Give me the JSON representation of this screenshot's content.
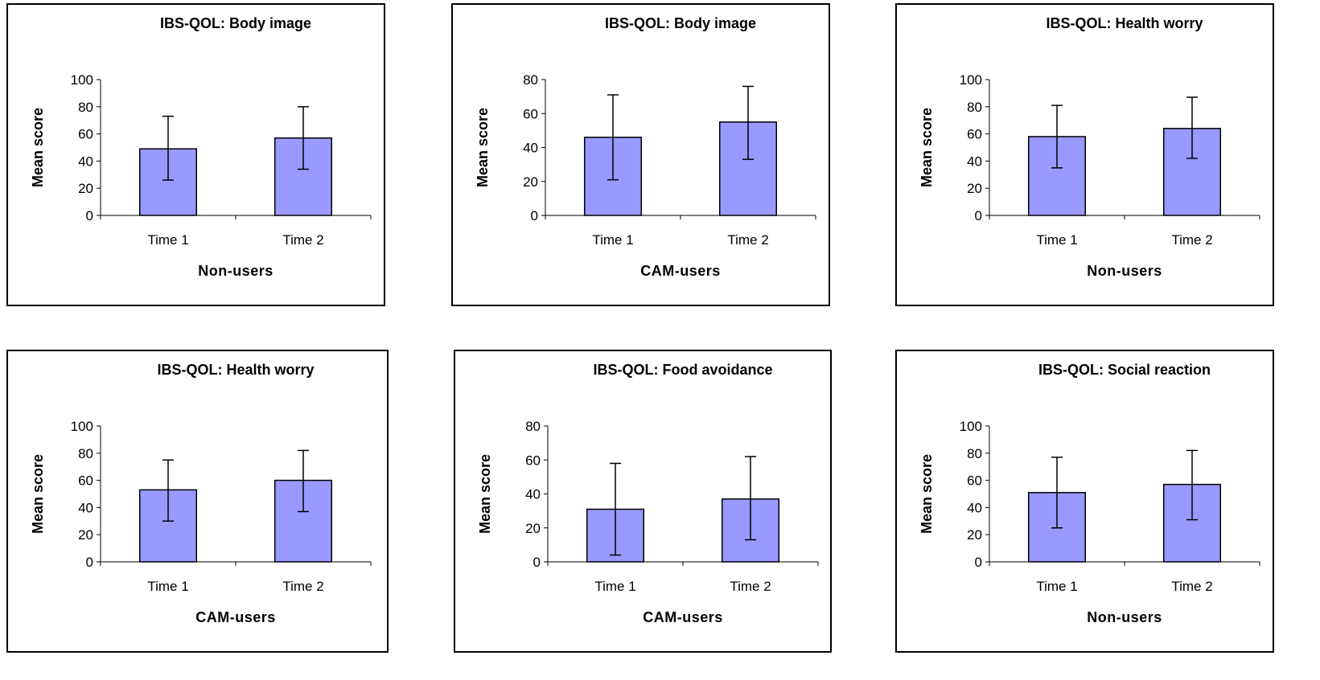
{
  "colors": {
    "bar_fill": "#9999ff",
    "bar_stroke": "#000000",
    "frame": "#000000"
  },
  "chart_data": [
    {
      "type": "bar",
      "title": "IBS-QOL: Body image",
      "xlabel": "Non-users",
      "ylabel": "Mean score",
      "categories": [
        "Time 1",
        "Time 2"
      ],
      "values": [
        49,
        57
      ],
      "error": [
        [
          26,
          73
        ],
        [
          34,
          80
        ]
      ],
      "ylim": [
        0,
        100
      ],
      "yticks": [
        0,
        20,
        40,
        60,
        80,
        100
      ],
      "grid": false,
      "legend": "none"
    },
    {
      "type": "bar",
      "title": "IBS-QOL: Body image",
      "xlabel": "CAM-users",
      "ylabel": "Mean score",
      "categories": [
        "Time 1",
        "Time 2"
      ],
      "values": [
        46,
        55
      ],
      "error": [
        [
          21,
          71
        ],
        [
          33,
          76
        ]
      ],
      "ylim": [
        0,
        80
      ],
      "yticks": [
        0,
        20,
        40,
        60,
        80
      ],
      "grid": false,
      "legend": "none"
    },
    {
      "type": "bar",
      "title": "IBS-QOL: Health worry",
      "xlabel": "Non-users",
      "ylabel": "Mean score",
      "categories": [
        "Time 1",
        "Time 2"
      ],
      "values": [
        58,
        64
      ],
      "error": [
        [
          35,
          81
        ],
        [
          42,
          87
        ]
      ],
      "ylim": [
        0,
        100
      ],
      "yticks": [
        0,
        20,
        40,
        60,
        80,
        100
      ],
      "grid": false,
      "legend": "none"
    },
    {
      "type": "bar",
      "title": "IBS-QOL: Health worry",
      "xlabel": "CAM-users",
      "ylabel": "Mean score",
      "categories": [
        "Time 1",
        "Time 2"
      ],
      "values": [
        53,
        60
      ],
      "error": [
        [
          30,
          75
        ],
        [
          37,
          82
        ]
      ],
      "ylim": [
        0,
        100
      ],
      "yticks": [
        0,
        20,
        40,
        60,
        80,
        100
      ],
      "grid": false,
      "legend": "none"
    },
    {
      "type": "bar",
      "title": "IBS-QOL: Food avoidance",
      "xlabel": "CAM-users",
      "ylabel": "Mean score",
      "categories": [
        "Time 1",
        "Time 2"
      ],
      "values": [
        31,
        37
      ],
      "error": [
        [
          4,
          58
        ],
        [
          13,
          62
        ]
      ],
      "ylim": [
        0,
        80
      ],
      "yticks": [
        0,
        20,
        40,
        60,
        80
      ],
      "grid": false,
      "legend": "none"
    },
    {
      "type": "bar",
      "title": "IBS-QOL: Social reaction",
      "xlabel": "Non-users",
      "ylabel": "Mean score",
      "categories": [
        "Time 1",
        "Time 2"
      ],
      "values": [
        51,
        57
      ],
      "error": [
        [
          25,
          77
        ],
        [
          31,
          82
        ]
      ],
      "ylim": [
        0,
        100
      ],
      "yticks": [
        0,
        20,
        40,
        60,
        80,
        100
      ],
      "grid": false,
      "legend": "none"
    }
  ]
}
